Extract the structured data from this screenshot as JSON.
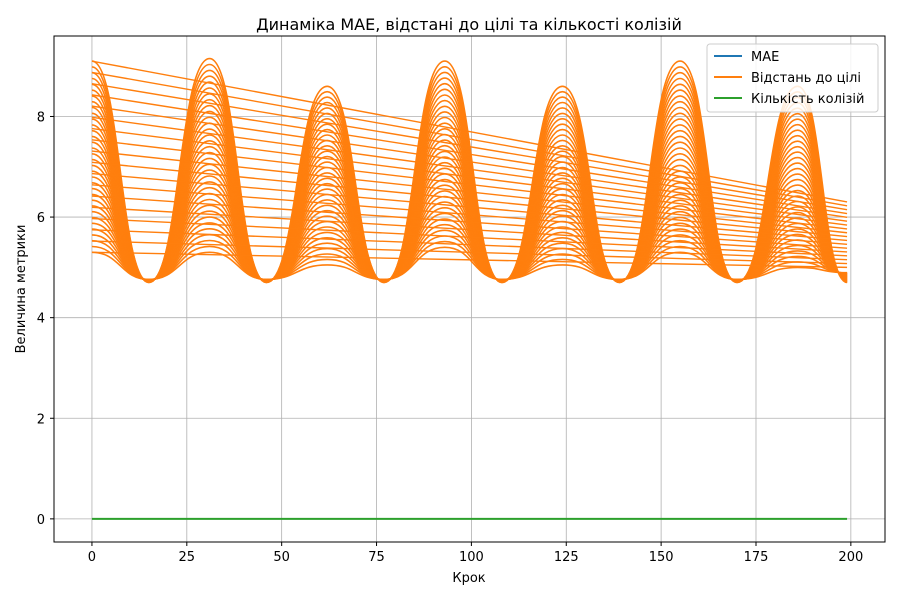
{
  "chart_data": {
    "type": "line",
    "title": "Динаміка MAE, відстані до цілі та кількості колізій",
    "xlabel": "Крок",
    "ylabel": "Величина метрики",
    "xlim": [
      -10,
      209
    ],
    "ylim": [
      -0.46,
      9.6
    ],
    "xticks": [
      0,
      25,
      50,
      75,
      100,
      125,
      150,
      175,
      200
    ],
    "yticks": [
      0,
      2,
      4,
      6,
      8
    ],
    "grid": true,
    "legend_position": "top-right",
    "series": [
      {
        "name": "MAE",
        "color": "#1f77b4",
        "note_pattern": "Series is fully hidden beneath the orange distance curves; overlaps them exactly.",
        "x": [
          0,
          15,
          31,
          46,
          62,
          77,
          93,
          108,
          124,
          139,
          155,
          170,
          186,
          199
        ],
        "values": [
          7.9,
          5.05,
          8.6,
          5.05,
          8.6,
          5.05,
          9.1,
          5.05,
          8.6,
          5.05,
          9.1,
          5.05,
          8.6,
          5.9
        ]
      },
      {
        "name": "Відстань до цілі",
        "color": "#ff7f0e",
        "band_center": {
          "x": [
            0,
            15,
            31,
            46,
            62,
            77,
            93,
            108,
            124,
            139,
            155,
            170,
            186,
            199
          ],
          "upper": [
            9.1,
            5.1,
            9.15,
            5.1,
            8.6,
            5.1,
            9.1,
            5.1,
            8.6,
            5.1,
            9.1,
            5.1,
            8.6,
            6.0
          ],
          "lower": [
            5.3,
            4.7,
            5.3,
            4.7,
            5.05,
            4.7,
            5.4,
            4.7,
            5.05,
            4.7,
            5.3,
            4.7,
            5.0,
            4.7
          ]
        },
        "x": [
          0,
          15,
          31,
          46,
          62,
          77,
          93,
          108,
          124,
          139,
          155,
          170,
          186,
          199
        ],
        "values": [
          7.8,
          5.05,
          7.2,
          5.05,
          7.0,
          5.05,
          7.2,
          5.05,
          6.8,
          5.05,
          7.0,
          5.05,
          6.8,
          5.4
        ]
      },
      {
        "name": "Кількість колізій",
        "color": "#2ca02c",
        "x": [
          0,
          199
        ],
        "values": [
          0,
          0
        ]
      }
    ]
  }
}
